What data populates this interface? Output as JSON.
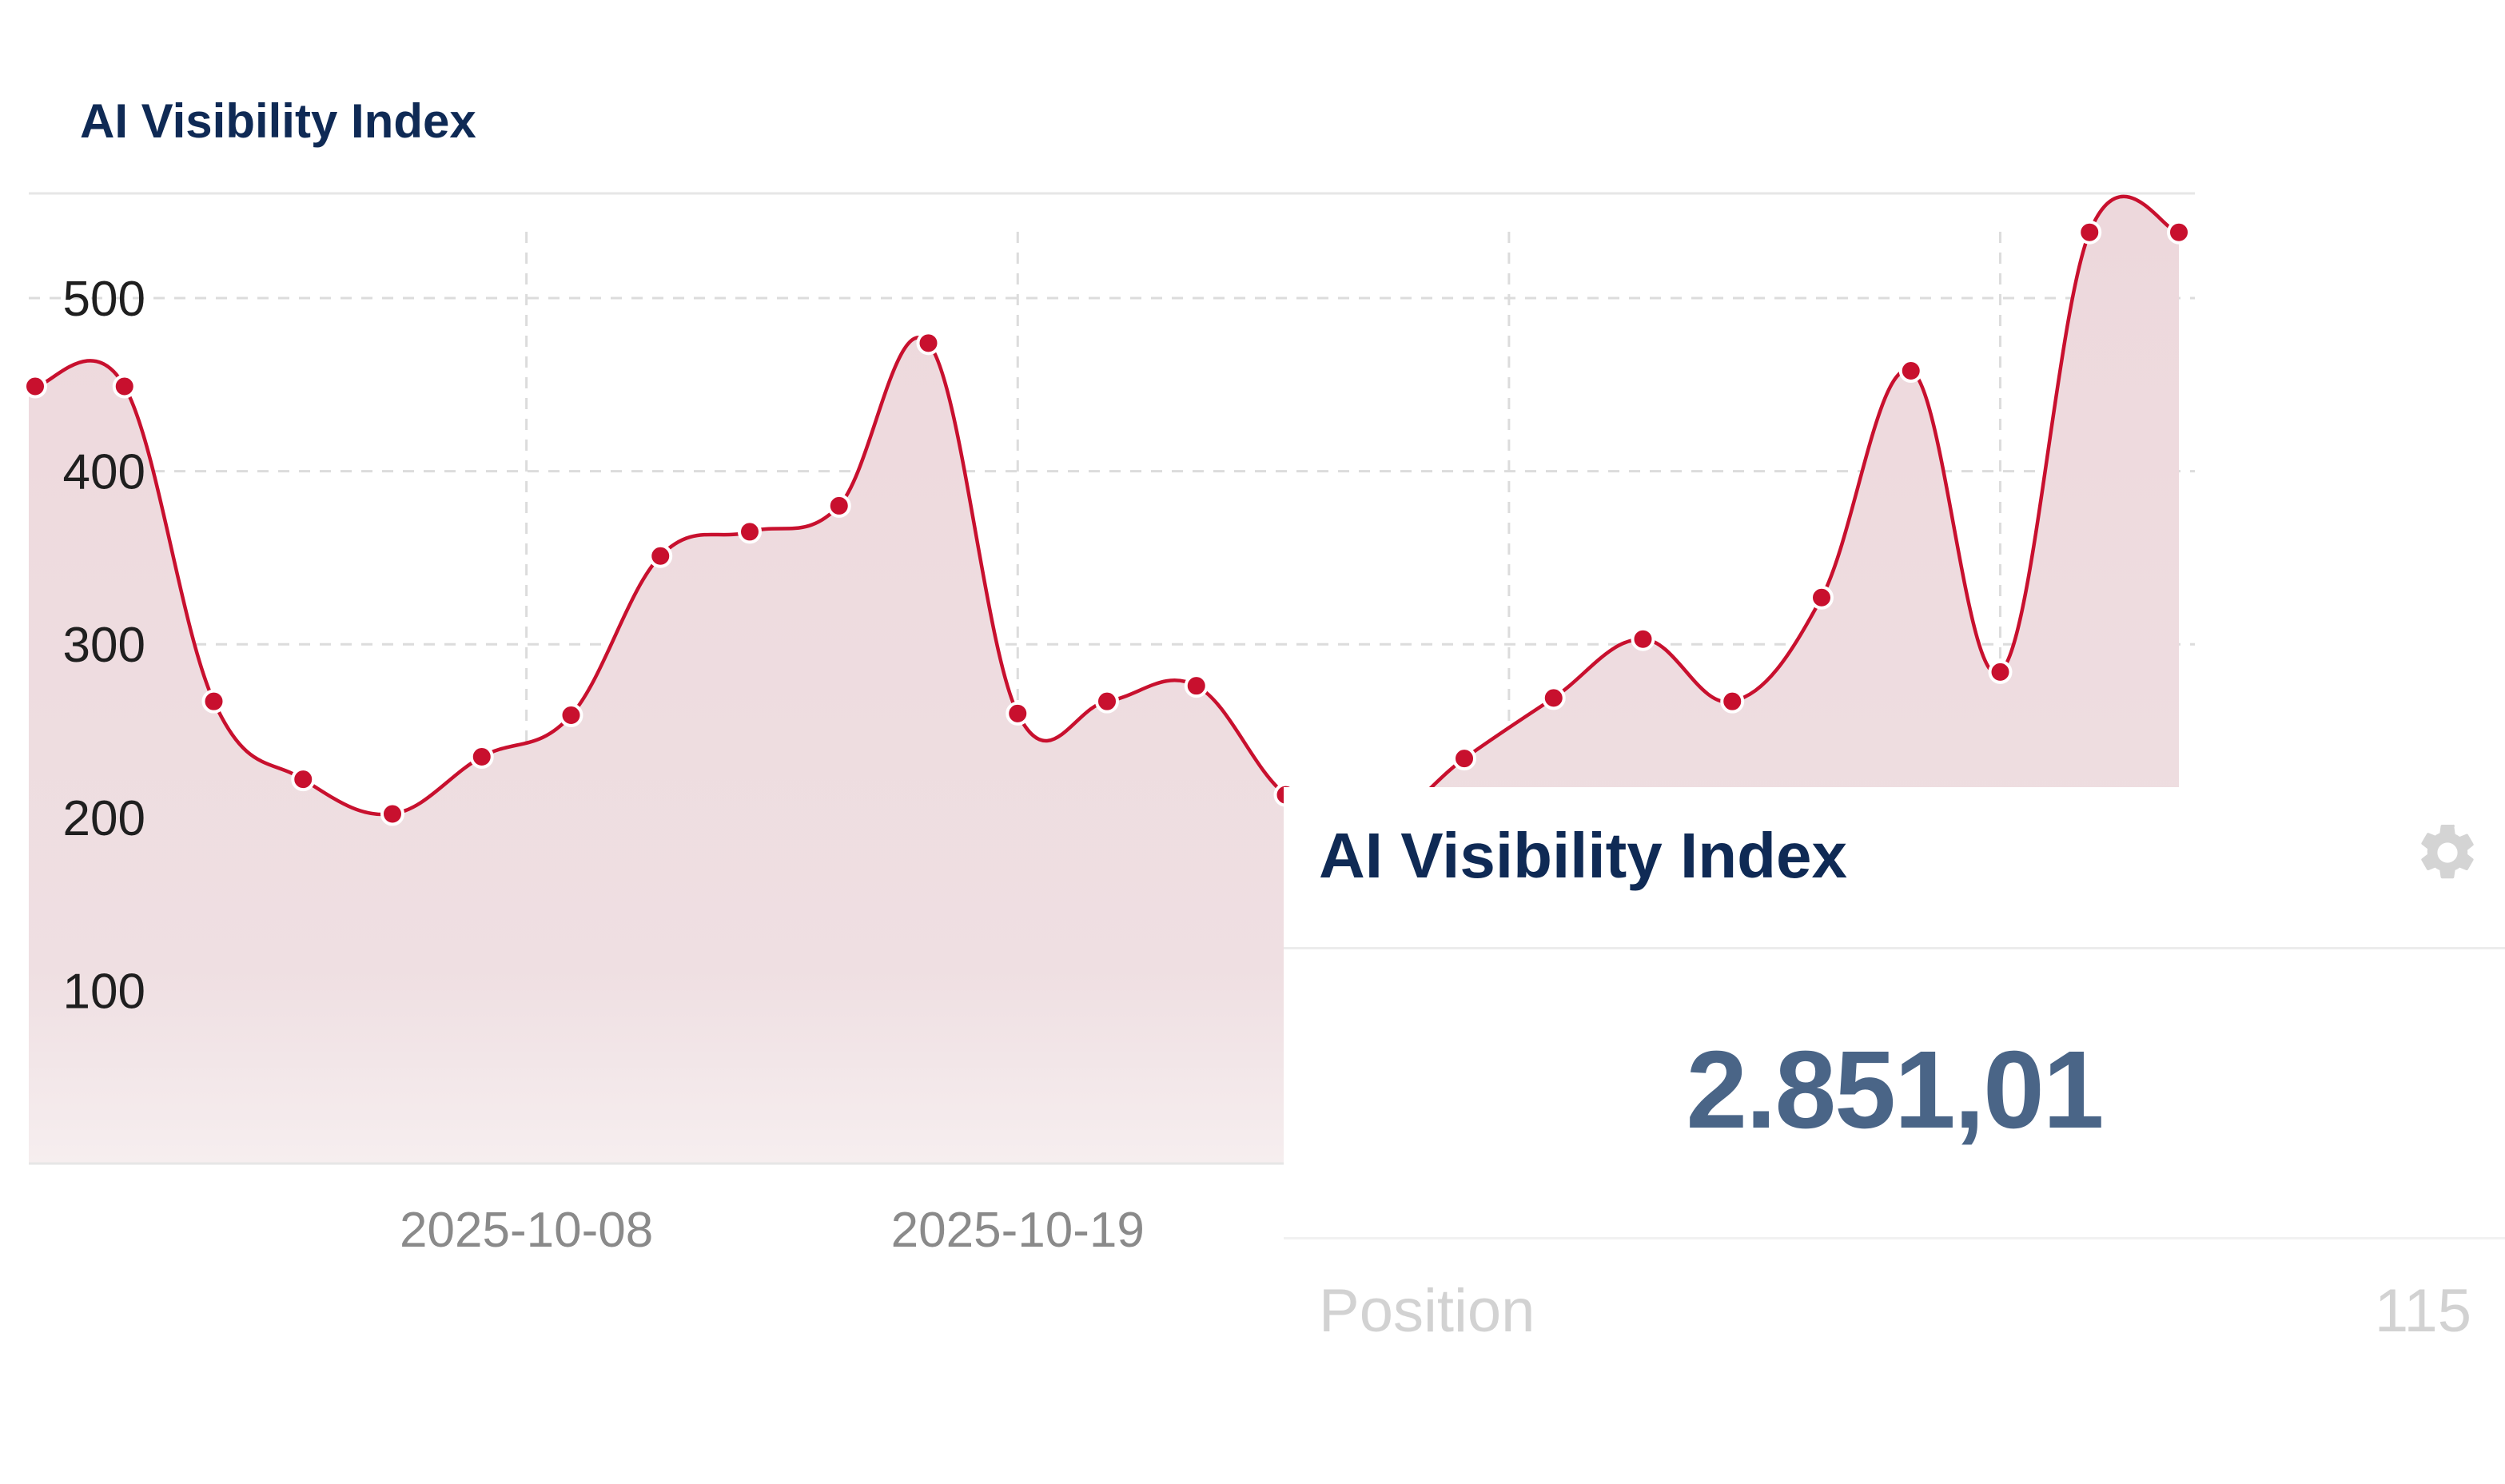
{
  "chart_data": {
    "type": "area",
    "title": "AI Visibility Index",
    "xlabel": "",
    "ylabel": "",
    "ylim": [
      0,
      560
    ],
    "yticks": [
      100,
      200,
      300,
      400,
      500
    ],
    "x_tick_labels": [
      "2025-10-08",
      "2025-10-19"
    ],
    "grid": true,
    "series": [
      {
        "color": "#c8102e",
        "fill": "#efdde0",
        "points": [
          {
            "x": "2025-09-27",
            "y": 449
          },
          {
            "x": "2025-09-29",
            "y": 449
          },
          {
            "x": "2025-10-01",
            "y": 267
          },
          {
            "x": "2025-10-03",
            "y": 222
          },
          {
            "x": "2025-10-05",
            "y": 202
          },
          {
            "x": "2025-10-07",
            "y": 235
          },
          {
            "x": "2025-10-09",
            "y": 259
          },
          {
            "x": "2025-10-11",
            "y": 351
          },
          {
            "x": "2025-10-13",
            "y": 365
          },
          {
            "x": "2025-10-15",
            "y": 380
          },
          {
            "x": "2025-10-17",
            "y": 474
          },
          {
            "x": "2025-10-19",
            "y": 260
          },
          {
            "x": "2025-10-21",
            "y": 267
          },
          {
            "x": "2025-10-23",
            "y": 276
          },
          {
            "x": "2025-10-25",
            "y": 213
          },
          {
            "x": "2025-10-27",
            "y": 195
          },
          {
            "x": "2025-10-29",
            "y": 234
          },
          {
            "x": "2025-10-31",
            "y": 269
          },
          {
            "x": "2025-11-02",
            "y": 303
          },
          {
            "x": "2025-11-04",
            "y": 267
          },
          {
            "x": "2025-11-06",
            "y": 327
          },
          {
            "x": "2025-11-08",
            "y": 458
          },
          {
            "x": "2025-11-10",
            "y": 284
          },
          {
            "x": "2025-11-12",
            "y": 538
          },
          {
            "x": "2025-11-14",
            "y": 538
          }
        ]
      }
    ]
  },
  "widget": {
    "title": "AI Visibility Index",
    "settings_icon": "gear-icon",
    "value": "2.851,01",
    "position_label": "Position",
    "position_value": "115"
  },
  "colors": {
    "line": "#c8102e",
    "area": "#efdde0",
    "title": "#0f2a55",
    "value": "#4a6587"
  }
}
